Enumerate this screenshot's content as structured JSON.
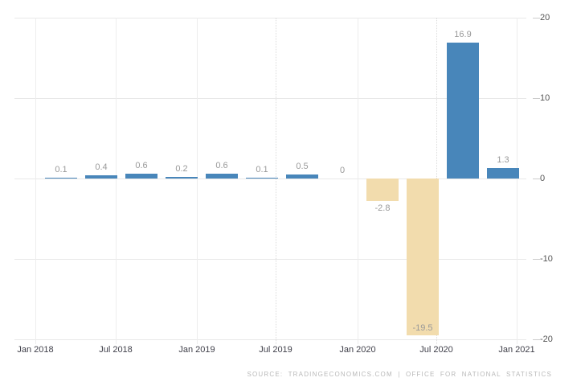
{
  "chart_data": {
    "type": "bar",
    "title": "",
    "xlabel": "",
    "ylabel": "",
    "categories": [
      "2018 Q1",
      "2018 Q2",
      "2018 Q3",
      "2018 Q4",
      "2019 Q1",
      "2019 Q2",
      "2019 Q3",
      "2019 Q4",
      "2020 Q1",
      "2020 Q2",
      "2020 Q3",
      "2020 Q4"
    ],
    "values": [
      0.1,
      0.4,
      0.6,
      0.2,
      0.6,
      0.1,
      0.5,
      0,
      -2.8,
      -19.5,
      16.9,
      1.3
    ],
    "bar_labels": [
      "0.1",
      "0.4",
      "0.6",
      "0.2",
      "0.6",
      "0.1",
      "0.5",
      "0",
      "-2.8",
      "-19.5",
      "16.9",
      "1.3"
    ],
    "label_placement": [
      "above",
      "above",
      "above",
      "above",
      "above",
      "above",
      "above",
      "above",
      "below",
      "inside",
      "above",
      "above"
    ],
    "x_tick_labels": [
      "Jan 2018",
      "Jul 2018",
      "Jan 2019",
      "Jul 2019",
      "Jan 2020",
      "Jul 2020",
      "Jan 2021"
    ],
    "y_tick_labels": [
      "20",
      "10",
      "0",
      "-10",
      "-20"
    ],
    "y_ticks": [
      20,
      10,
      0,
      -10,
      -20
    ],
    "ylim": [
      -20,
      20
    ],
    "axis_side": "right",
    "grid": true,
    "legend": false,
    "colors": {
      "positive_bar": "#4886ba",
      "negative_bar": "#f2dcad",
      "grid_line": "#e8e8e8",
      "tick_mark": "#cccccc",
      "y_axis_label": "#555555",
      "x_axis_label": "#40404a",
      "value_label": "#999999",
      "source_text": "#b9b9b9",
      "background": "#ffffff"
    }
  },
  "footer": {
    "source_text": "SOURCE: TRADINGECONOMICS.COM | OFFICE FOR NATIONAL STATISTICS"
  }
}
